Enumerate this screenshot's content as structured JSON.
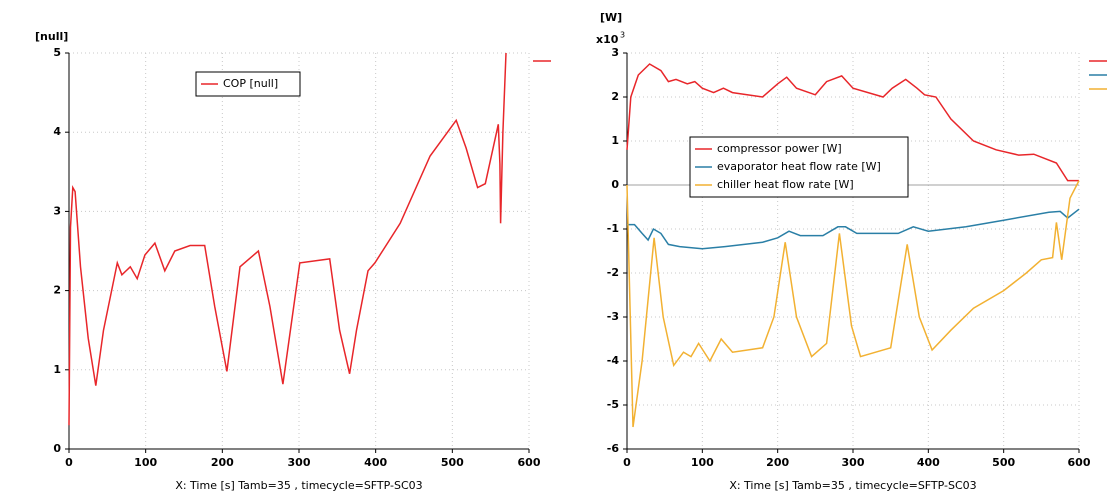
{
  "chart_data": [
    {
      "type": "line",
      "y_label": "[null]",
      "x_label": "X: Time [s] Tamb=35 , timecycle=SFTP-SC03",
      "xlim": [
        0,
        600
      ],
      "xticks": [
        0,
        100,
        200,
        300,
        400,
        500,
        600
      ],
      "ylim": [
        0,
        5
      ],
      "yticks": [
        0,
        1,
        2,
        3,
        4,
        5
      ],
      "grid": true,
      "series": [
        {
          "name": "COP [null]",
          "color": "#e8262a",
          "x": [
            0,
            2,
            5,
            8,
            15,
            25,
            35,
            45,
            63,
            69,
            80,
            89,
            99,
            112,
            125,
            138,
            158,
            177,
            190,
            206,
            223,
            247,
            262,
            279,
            301,
            340,
            353,
            366,
            375,
            390,
            399,
            432,
            471,
            505,
            518,
            533,
            543,
            560,
            562,
            563,
            566,
            570
          ],
          "values": [
            0.3,
            2.8,
            3.3,
            3.25,
            2.3,
            1.4,
            0.8,
            1.5,
            2.35,
            2.2,
            2.3,
            2.15,
            2.45,
            2.6,
            2.25,
            2.5,
            2.57,
            2.57,
            1.8,
            0.98,
            2.3,
            2.5,
            1.8,
            0.82,
            2.35,
            2.4,
            1.5,
            0.95,
            1.5,
            2.25,
            2.35,
            2.85,
            3.7,
            4.15,
            3.8,
            3.3,
            3.35,
            4.1,
            3.6,
            2.85,
            4.0,
            5.0
          ]
        }
      ]
    },
    {
      "type": "line",
      "y_label": "[W]",
      "y_multiplier": "x10",
      "y_exponent": "3",
      "x_label": "X: Time [s] Tamb=35 , timecycle=SFTP-SC03",
      "xlim": [
        0,
        600
      ],
      "xticks": [
        0,
        100,
        200,
        300,
        400,
        500,
        600
      ],
      "ylim": [
        -6,
        3
      ],
      "yticks": [
        -6,
        -5,
        -4,
        -3,
        -2,
        -1,
        0,
        1,
        2,
        3
      ],
      "grid": true,
      "series": [
        {
          "name": "compressor power [W]",
          "color": "#e8262a",
          "x": [
            0,
            5,
            15,
            30,
            45,
            55,
            65,
            80,
            90,
            100,
            115,
            128,
            140,
            180,
            200,
            212,
            225,
            250,
            265,
            285,
            300,
            340,
            352,
            370,
            385,
            395,
            410,
            430,
            460,
            490,
            520,
            540,
            570,
            585,
            600
          ],
          "values": [
            0.8,
            2.0,
            2.5,
            2.75,
            2.6,
            2.35,
            2.4,
            2.3,
            2.35,
            2.2,
            2.1,
            2.2,
            2.1,
            2.0,
            2.3,
            2.45,
            2.2,
            2.05,
            2.35,
            2.48,
            2.2,
            2.0,
            2.2,
            2.4,
            2.2,
            2.05,
            2.0,
            1.5,
            1.0,
            0.8,
            0.68,
            0.7,
            0.5,
            0.1,
            0.1
          ]
        },
        {
          "name": "evaporator heat flow rate [W]",
          "color": "#2a7fa6",
          "x": [
            0,
            10,
            20,
            28,
            35,
            45,
            55,
            70,
            100,
            130,
            180,
            200,
            215,
            230,
            260,
            280,
            290,
            305,
            360,
            380,
            400,
            450,
            500,
            560,
            575,
            585,
            600
          ],
          "values": [
            -0.9,
            -0.9,
            -1.1,
            -1.25,
            -1.0,
            -1.1,
            -1.35,
            -1.4,
            -1.45,
            -1.4,
            -1.3,
            -1.2,
            -1.05,
            -1.15,
            -1.15,
            -0.95,
            -0.95,
            -1.1,
            -1.1,
            -0.95,
            -1.05,
            -0.95,
            -0.8,
            -0.62,
            -0.6,
            -0.75,
            -0.55
          ]
        },
        {
          "name": "chiller heat flow rate [W]",
          "color": "#f2b132",
          "x": [
            0,
            8,
            20,
            36,
            48,
            62,
            75,
            85,
            95,
            110,
            125,
            140,
            180,
            195,
            210,
            225,
            245,
            265,
            282,
            298,
            310,
            350,
            372,
            388,
            405,
            430,
            460,
            500,
            530,
            550,
            565,
            570,
            577,
            588,
            600
          ],
          "values": [
            0,
            -5.5,
            -4,
            -1.2,
            -3,
            -4.1,
            -3.8,
            -3.9,
            -3.6,
            -4,
            -3.5,
            -3.8,
            -3.7,
            -3,
            -1.3,
            -3,
            -3.9,
            -3.6,
            -1.1,
            -3.2,
            -3.9,
            -3.7,
            -1.35,
            -3,
            -3.75,
            -3.3,
            -2.8,
            -2.4,
            -2.0,
            -1.7,
            -1.65,
            -0.85,
            -1.7,
            -0.3,
            0.1
          ]
        }
      ]
    }
  ]
}
